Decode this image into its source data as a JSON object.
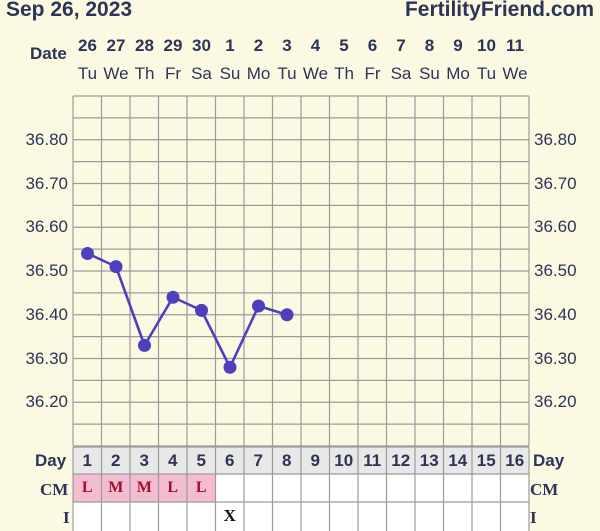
{
  "header": {
    "date": "Sep 26, 2023",
    "site": "FertilityFriend.com"
  },
  "labels": {
    "date": "Date",
    "day": "Day",
    "cm": "CM",
    "i": "I"
  },
  "colors": {
    "background": "#fcf9e3",
    "grid": "#9b9b9b",
    "line": "#4f3fbf",
    "cm_fill": "#f3bcd0",
    "day_row": "#e8e8e8"
  },
  "dates": [
    {
      "num": "26",
      "dow": "Tu"
    },
    {
      "num": "27",
      "dow": "We"
    },
    {
      "num": "28",
      "dow": "Th"
    },
    {
      "num": "29",
      "dow": "Fr"
    },
    {
      "num": "30",
      "dow": "Sa"
    },
    {
      "num": "1",
      "dow": "Su"
    },
    {
      "num": "2",
      "dow": "Mo"
    },
    {
      "num": "3",
      "dow": "Tu"
    },
    {
      "num": "4",
      "dow": "We"
    },
    {
      "num": "5",
      "dow": "Th"
    },
    {
      "num": "6",
      "dow": "Fr"
    },
    {
      "num": "7",
      "dow": "Sa"
    },
    {
      "num": "8",
      "dow": "Su"
    },
    {
      "num": "9",
      "dow": "Mo"
    },
    {
      "num": "10",
      "dow": "Tu"
    },
    {
      "num": "11",
      "dow": "We"
    }
  ],
  "day_numbers": [
    "1",
    "2",
    "3",
    "4",
    "5",
    "6",
    "7",
    "8",
    "9",
    "10",
    "11",
    "12",
    "13",
    "14",
    "15",
    "16"
  ],
  "cm": [
    "L",
    "M",
    "M",
    "L",
    "L",
    "",
    "",
    "",
    "",
    "",
    "",
    "",
    "",
    "",
    "",
    ""
  ],
  "intercourse": [
    "",
    "",
    "",
    "",
    "",
    "X",
    "",
    "",
    "",
    "",
    "",
    "",
    "",
    "",
    "",
    ""
  ],
  "chart_data": {
    "type": "line",
    "x": [
      1,
      2,
      3,
      4,
      5,
      6,
      7,
      8
    ],
    "series": [
      {
        "values": [
          36.54,
          36.51,
          36.33,
          36.44,
          36.41,
          36.28,
          36.42,
          36.4
        ]
      }
    ],
    "y_ticks": [
      "36.80",
      "36.70",
      "36.60",
      "36.50",
      "36.40",
      "36.30",
      "36.20"
    ],
    "ylim": [
      36.1,
      36.9
    ],
    "xlim": [
      1,
      16
    ],
    "grid": true
  }
}
